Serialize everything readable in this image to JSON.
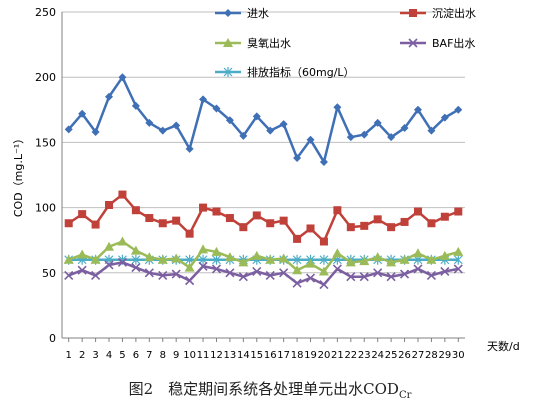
{
  "chart_data": {
    "type": "line",
    "ylabel": "COD（mg.L⁻¹）",
    "xlabel": "天数/d",
    "ylim": [
      0,
      250
    ],
    "yticks": [
      0,
      50,
      100,
      150,
      200,
      250
    ],
    "x": [
      1,
      2,
      3,
      4,
      5,
      6,
      7,
      8,
      9,
      10,
      11,
      12,
      13,
      14,
      15,
      16,
      17,
      18,
      19,
      20,
      21,
      22,
      23,
      24,
      25,
      26,
      27,
      28,
      29,
      30
    ],
    "grid": true,
    "legend_position": "top",
    "series": [
      {
        "name": "进水",
        "color": "#3F6FB5",
        "marker": "diamond",
        "values": [
          160,
          172,
          158,
          185,
          200,
          178,
          165,
          159,
          163,
          145,
          183,
          176,
          167,
          155,
          170,
          159,
          164,
          138,
          152,
          135,
          177,
          154,
          156,
          165,
          154,
          161,
          175,
          159,
          169,
          175
        ]
      },
      {
        "name": "沉淀出水",
        "color": "#C0403A",
        "marker": "square",
        "values": [
          88,
          95,
          87,
          102,
          110,
          98,
          92,
          88,
          90,
          80,
          100,
          97,
          92,
          85,
          94,
          88,
          90,
          76,
          84,
          74,
          98,
          85,
          86,
          91,
          85,
          89,
          97,
          88,
          93,
          97
        ]
      },
      {
        "name": "臭氧出水",
        "color": "#9BBB59",
        "marker": "triangle",
        "values": [
          60,
          64,
          60,
          70,
          74,
          67,
          62,
          60,
          61,
          54,
          68,
          66,
          62,
          58,
          63,
          60,
          61,
          52,
          57,
          51,
          65,
          58,
          59,
          62,
          58,
          60,
          65,
          60,
          63,
          66
        ]
      },
      {
        "name": "BAF出水",
        "color": "#7B5FA0",
        "marker": "x",
        "values": [
          48,
          52,
          48,
          56,
          58,
          54,
          50,
          48,
          49,
          44,
          55,
          53,
          50,
          47,
          51,
          48,
          50,
          42,
          46,
          41,
          53,
          47,
          47,
          50,
          47,
          49,
          53,
          48,
          51,
          53
        ]
      },
      {
        "name": "排放指标（60mg/L）",
        "color": "#4BACC6",
        "marker": "star",
        "values": [
          60,
          60,
          60,
          60,
          60,
          60,
          60,
          60,
          60,
          60,
          60,
          60,
          60,
          60,
          60,
          60,
          60,
          60,
          60,
          60,
          60,
          60,
          60,
          60,
          60,
          60,
          60,
          60,
          60,
          60
        ]
      }
    ]
  },
  "caption": {
    "prefix": "图2　稳定期间系统各处理单元出水COD",
    "subscript": "Cr"
  }
}
